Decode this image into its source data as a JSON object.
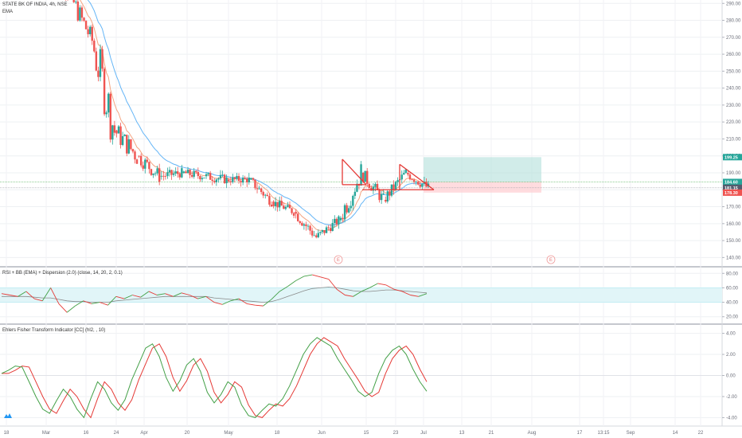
{
  "main_pane": {
    "title": "STATE BK OF INDIA, 4h, NSE",
    "indicator_label": "EMA",
    "ylim": [
      135,
      292
    ],
    "y_ticks": [
      "290.00",
      "280.00",
      "270.00",
      "260.00",
      "250.00",
      "240.00",
      "230.00",
      "220.00",
      "210.00",
      "200.00",
      "190.00",
      "180.00",
      "170.00",
      "160.00",
      "150.00",
      "140.00"
    ],
    "price_badges": [
      {
        "label": "199.25",
        "value": 199.25,
        "color": "#26a69a"
      },
      {
        "label": "184.60",
        "value": 184.6,
        "color": "#26a69a"
      },
      {
        "label": "181.15",
        "value": 181.15,
        "color": "#555b6e"
      },
      {
        "label": "178.30",
        "value": 178.3,
        "color": "#ef5350"
      }
    ],
    "earnings_markers": [
      "E",
      "E"
    ],
    "colors": {
      "up": "#26a69a",
      "down": "#ef5350",
      "ema_fast": "#f4a582",
      "ema_slow": "#64b5f6",
      "pattern": "#e53935"
    }
  },
  "rsi_pane": {
    "title": "RSI + BB (EMA) + Dispersion (2.0) (close, 14, 20, 2, 0.1)",
    "ylim": [
      12,
      88
    ],
    "y_ticks": [
      "80.00",
      "60.00",
      "40.00",
      "20.00"
    ],
    "colors": {
      "up": "#43a047",
      "down": "#e53935",
      "basis": "#8a8a8a",
      "band": "#e1f5f8"
    }
  },
  "fisher_pane": {
    "title": "Ehlers Fisher Transform Indicator [CC] (hl2, , 10)",
    "ylim": [
      -4.8,
      4.8
    ],
    "y_ticks": [
      "4.00",
      "2.00",
      "0.00",
      "-2.00",
      "-4.00"
    ],
    "colors": {
      "fisher": "#43a047",
      "trigger": "#e53935"
    }
  },
  "x_axis": {
    "ticks": [
      "18",
      "Mar",
      "16",
      "24",
      "Apr",
      "20",
      "May",
      "18",
      "Jun",
      "15",
      "23",
      "Jul",
      "13",
      "21",
      "Aug",
      "17",
      "13:15",
      "Sep",
      "14",
      "22"
    ]
  },
  "chart_data": [
    {
      "type": "candlestick",
      "title": "STATE BK OF INDIA, 4h, NSE",
      "ylim": [
        135,
        292
      ],
      "ohlc_by_week": [
        {
          "period": "late Feb",
          "open": 318,
          "high": 325,
          "low": 290,
          "close": 295
        },
        {
          "period": "Mar wk1",
          "open": 295,
          "high": 298,
          "low": 262,
          "close": 268
        },
        {
          "period": "Mar wk2",
          "open": 268,
          "high": 272,
          "low": 185,
          "close": 215
        },
        {
          "period": "Mar wk3",
          "open": 215,
          "high": 222,
          "low": 185,
          "close": 200
        },
        {
          "period": "Mar wk4",
          "open": 200,
          "high": 205,
          "low": 180,
          "close": 188
        },
        {
          "period": "Apr wk1",
          "open": 188,
          "high": 198,
          "low": 182,
          "close": 190
        },
        {
          "period": "Apr wk2",
          "open": 190,
          "high": 198,
          "low": 183,
          "close": 188
        },
        {
          "period": "Apr wk3",
          "open": 188,
          "high": 197,
          "low": 181,
          "close": 186
        },
        {
          "period": "Apr wk4",
          "open": 186,
          "high": 193,
          "low": 180,
          "close": 186
        },
        {
          "period": "May wk1",
          "open": 186,
          "high": 187,
          "low": 170,
          "close": 173
        },
        {
          "period": "May wk2",
          "open": 173,
          "high": 178,
          "low": 163,
          "close": 167
        },
        {
          "period": "May wk3",
          "open": 167,
          "high": 170,
          "low": 150,
          "close": 152
        },
        {
          "period": "May wk4",
          "open": 152,
          "high": 165,
          "low": 149,
          "close": 162
        },
        {
          "period": "Jun wk1",
          "open": 162,
          "high": 199,
          "low": 160,
          "close": 190
        },
        {
          "period": "Jun wk2",
          "open": 190,
          "high": 193,
          "low": 170,
          "close": 174
        },
        {
          "period": "Jun wk3",
          "open": 174,
          "high": 192,
          "low": 171,
          "close": 190
        },
        {
          "period": "Jun wk4",
          "open": 190,
          "high": 196,
          "low": 178,
          "close": 181
        }
      ],
      "ema_fast_note": "orange EMA line",
      "ema_slow_note": "blue EMA line",
      "position": {
        "target": 199.25,
        "entry": 184.6,
        "stop": 178.3
      },
      "pattern": "triangles marked in red"
    },
    {
      "type": "line",
      "title": "RSI + BB (EMA) + Dispersion (2.0) (close, 14, 20, 2, 0.1)",
      "ylim": [
        12,
        88
      ],
      "series": [
        {
          "name": "RSI",
          "values": [
            52,
            50,
            48,
            55,
            45,
            42,
            60,
            38,
            26,
            35,
            42,
            38,
            40,
            36,
            48,
            45,
            50,
            47,
            55,
            50,
            52,
            48,
            53,
            50,
            45,
            48,
            40,
            37,
            42,
            45,
            38,
            36,
            35,
            44,
            55,
            62,
            70,
            76,
            78,
            75,
            72,
            58,
            50,
            48,
            55,
            60,
            66,
            64,
            58,
            55,
            50,
            48,
            52
          ]
        },
        {
          "name": "Basis",
          "values": [
            48,
            48,
            48,
            48,
            47,
            46,
            46,
            44,
            42,
            41,
            41,
            40,
            40,
            40,
            42,
            43,
            44,
            45,
            46,
            47,
            48,
            48,
            48,
            48,
            48,
            48,
            46,
            45,
            44,
            43,
            42,
            41,
            40,
            41,
            44,
            48,
            52,
            56,
            59,
            60,
            61,
            60,
            58,
            56,
            55,
            55,
            56,
            57,
            57,
            56,
            55,
            54,
            53
          ]
        }
      ]
    },
    {
      "type": "line",
      "title": "Ehlers Fisher Transform Indicator [CC] (hl2, , 10)",
      "ylim": [
        -4.8,
        4.8
      ],
      "series": [
        {
          "name": "Fisher",
          "values": [
            0.2,
            0.5,
            0.9,
            0.8,
            -0.6,
            -2.0,
            -3.2,
            -3.6,
            -2.4,
            -1.3,
            -2.0,
            -3.2,
            -4.0,
            -2.2,
            -0.6,
            -1.3,
            -2.6,
            -3.3,
            -2.3,
            -0.4,
            1.1,
            2.6,
            3.0,
            1.8,
            -0.2,
            -1.5,
            -0.5,
            1.0,
            1.6,
            0.4,
            -1.6,
            -2.6,
            -1.8,
            -0.6,
            -1.1,
            -2.8,
            -3.8,
            -4.0,
            -3.3,
            -2.7,
            -2.9,
            -2.2,
            -1.0,
            0.5,
            2.0,
            3.0,
            3.6,
            3.2,
            2.8,
            1.6,
            0.6,
            -0.4,
            -1.5,
            -2.0,
            -1.6,
            0.2,
            1.6,
            2.4,
            2.8,
            2.0,
            0.6,
            -0.6,
            -1.5
          ]
        }
      ]
    }
  ]
}
